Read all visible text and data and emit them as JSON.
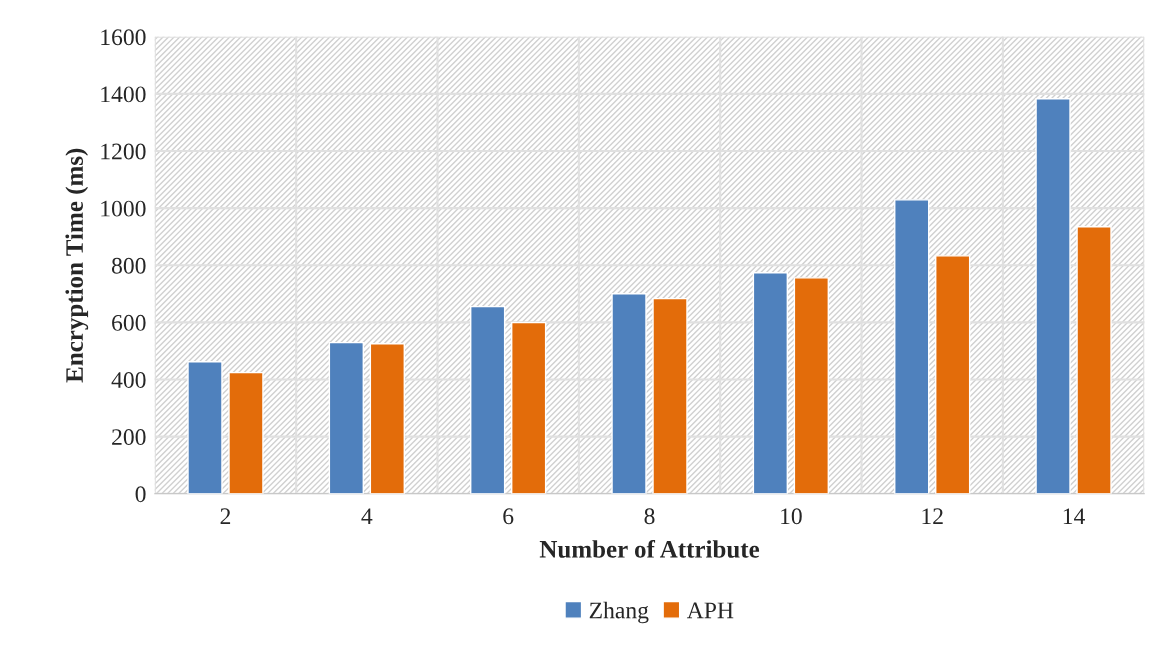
{
  "chart_data": {
    "type": "bar",
    "xlabel": "Number of Attribute",
    "ylabel": "Encryption Time (ms)",
    "categories": [
      "2",
      "4",
      "6",
      "8",
      "10",
      "12",
      "14"
    ],
    "series": [
      {
        "name": "Zhang",
        "color": "#4f81bd",
        "values": [
          462,
          529,
          655,
          700,
          774,
          1029,
          1383
        ]
      },
      {
        "name": "APH",
        "color": "#e36c0a",
        "values": [
          424,
          525,
          599,
          683,
          756,
          833,
          935
        ]
      }
    ],
    "ylim": [
      0,
      1600
    ],
    "yticks": [
      0,
      200,
      400,
      600,
      800,
      1000,
      1200,
      1400,
      1600
    ],
    "grid": true,
    "legend": "bottom"
  }
}
